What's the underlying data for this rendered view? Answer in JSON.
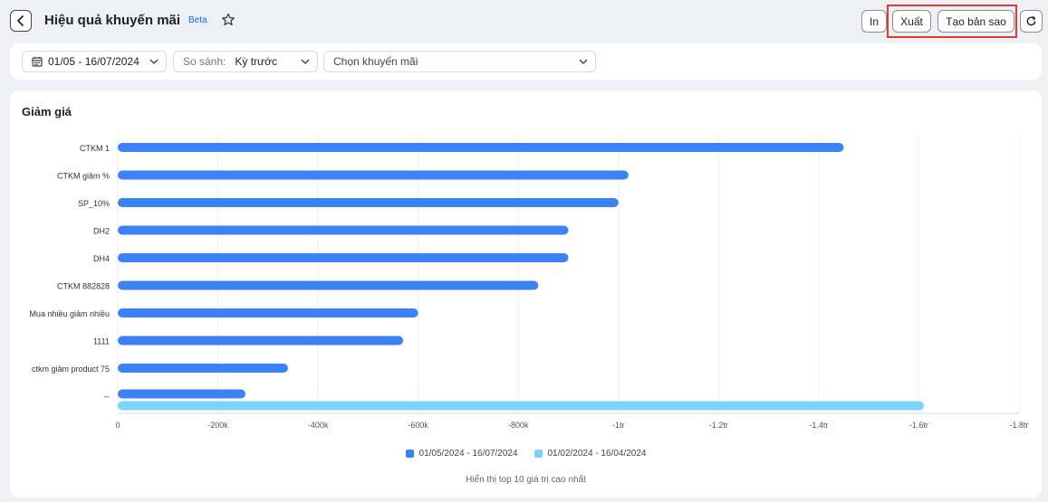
{
  "header": {
    "title": "Hiệu quả khuyến mãi",
    "badge": "Beta",
    "print_label": "In",
    "export_label": "Xuất",
    "copy_label": "Tạo bản sao"
  },
  "filters": {
    "date_range": "01/05 - 16/07/2024",
    "compare_label": "So sánh:",
    "compare_value": "Kỳ trước",
    "promo_placeholder": "Chọn khuyến mãi"
  },
  "chart": {
    "title": "Giảm giá",
    "footnote": "Hiển thị top 10 giá trị cao nhất",
    "accent_current": "#3b82f6",
    "accent_previous": "#7dd3fc"
  },
  "chart_data": {
    "type": "bar",
    "orientation": "horizontal",
    "title": "Giảm giá",
    "categories": [
      "CTKM 1",
      "CTKM giảm %",
      "SP_10%",
      "DH2",
      "DH4",
      "CTKM 882828",
      "Mua nhiều giảm nhiều",
      "1111",
      "ctkm giảm product 75",
      "--"
    ],
    "series": [
      {
        "name": "01/05/2024 - 16/07/2024",
        "values": [
          -1450000,
          -1020000,
          -1000000,
          -900000,
          -900000,
          -840000,
          -600000,
          -570000,
          -340000,
          -255000
        ]
      },
      {
        "name": "01/02/2024 - 16/04/2024",
        "values": [
          0,
          0,
          0,
          0,
          0,
          0,
          0,
          0,
          0,
          -1610000
        ]
      }
    ],
    "xlim": [
      0,
      -1800000
    ],
    "xticks": [
      {
        "value": 0,
        "label": "0"
      },
      {
        "value": -200000,
        "label": "-200k"
      },
      {
        "value": -400000,
        "label": "-400k"
      },
      {
        "value": -600000,
        "label": "-600k"
      },
      {
        "value": -800000,
        "label": "-800k"
      },
      {
        "value": -1000000,
        "label": "-1tr"
      },
      {
        "value": -1200000,
        "label": "-1.2tr"
      },
      {
        "value": -1400000,
        "label": "-1.4tr"
      },
      {
        "value": -1600000,
        "label": "-1.6tr"
      },
      {
        "value": -1800000,
        "label": "-1.8tr"
      }
    ],
    "grid": true,
    "legend": "bottom"
  }
}
